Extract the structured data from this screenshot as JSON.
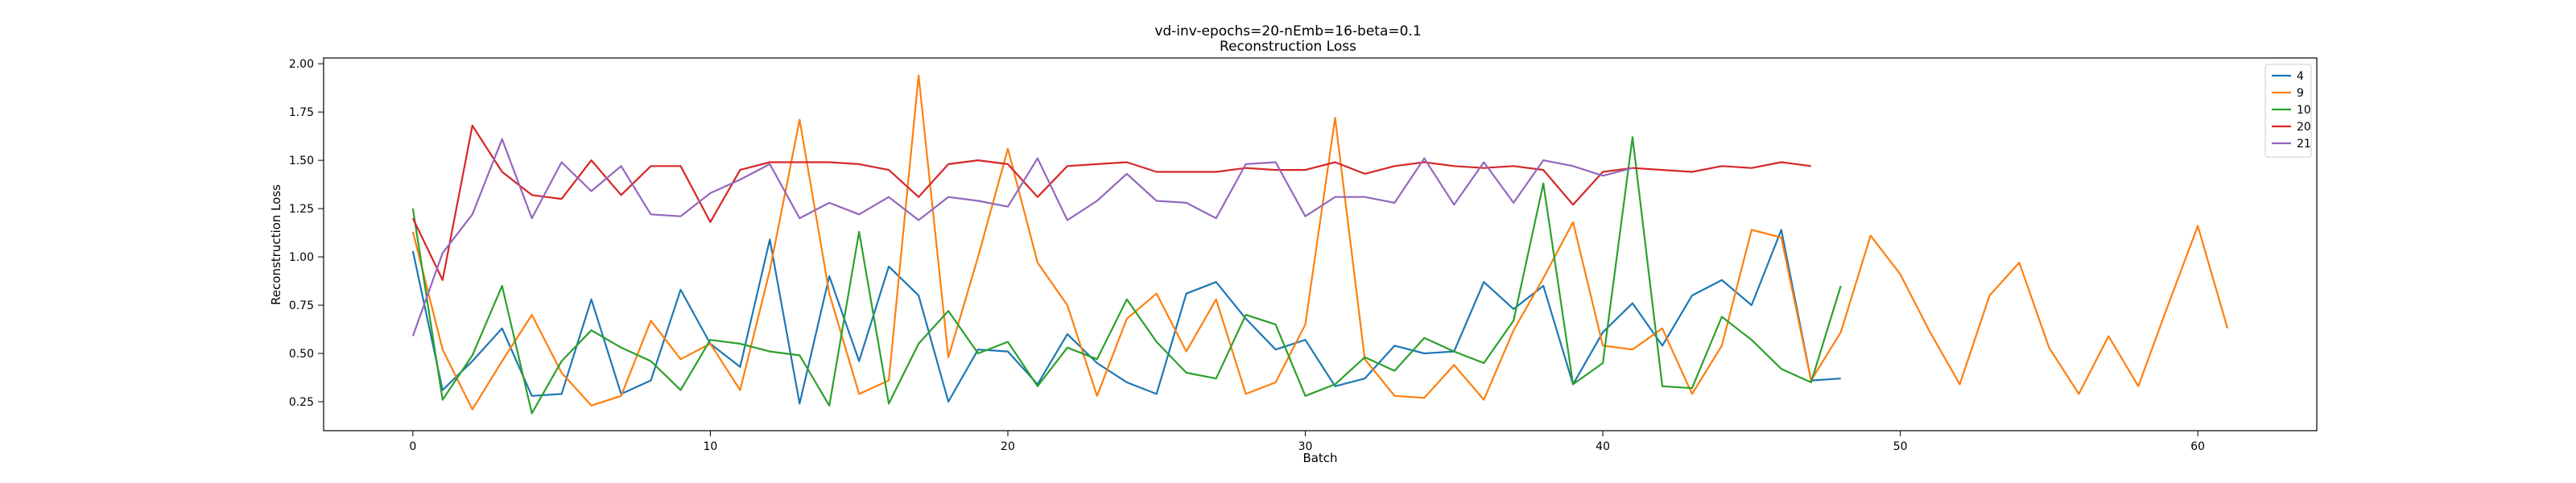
{
  "chart_data": {
    "type": "line",
    "title": "vd-inv-epochs=20-nEmb=16-beta=0.1",
    "subtitle": "Reconstruction Loss",
    "xlabel": "Batch",
    "ylabel": "Reconstruction Loss",
    "xlim": [
      -3,
      64
    ],
    "ylim": [
      0.1,
      2.03
    ],
    "xticks": [
      0,
      10,
      20,
      30,
      40,
      50,
      60
    ],
    "yticks": [
      0.25,
      0.5,
      0.75,
      1.0,
      1.25,
      1.5,
      1.75,
      2.0
    ],
    "ytick_labels": [
      "0.25",
      "0.50",
      "0.75",
      "1.00",
      "1.25",
      "1.50",
      "1.75",
      "2.00"
    ],
    "legend_position": "top-right",
    "grid": false,
    "series": [
      {
        "name": "4",
        "color": "#1f77b4",
        "values": [
          1.03,
          0.31,
          0.46,
          0.63,
          0.28,
          0.29,
          0.78,
          0.29,
          0.36,
          0.83,
          0.55,
          0.43,
          1.09,
          0.24,
          0.9,
          0.46,
          0.95,
          0.8,
          0.25,
          0.52,
          0.51,
          0.34,
          0.6,
          0.45,
          0.35,
          0.29,
          0.81,
          0.87,
          0.68,
          0.52,
          0.57,
          0.33,
          0.37,
          0.54,
          0.5,
          0.51,
          0.87,
          0.73,
          0.85,
          0.34,
          0.61,
          0.76,
          0.54,
          0.8,
          0.88,
          0.75,
          1.14,
          0.36,
          0.37
        ]
      },
      {
        "name": "9",
        "color": "#ff7f0e",
        "values": [
          1.13,
          0.52,
          0.21,
          0.46,
          0.7,
          0.4,
          0.23,
          0.28,
          0.67,
          0.47,
          0.55,
          0.31,
          0.93,
          1.71,
          0.81,
          0.29,
          0.36,
          1.94,
          0.48,
          1.0,
          1.56,
          0.97,
          0.75,
          0.28,
          0.68,
          0.81,
          0.51,
          0.78,
          0.29,
          0.35,
          0.65,
          1.72,
          0.47,
          0.28,
          0.27,
          0.44,
          0.26,
          0.62,
          0.89,
          1.18,
          0.54,
          0.52,
          0.63,
          0.29,
          0.54,
          1.14,
          1.1,
          0.36,
          0.61,
          1.11,
          0.91,
          0.61,
          0.34,
          0.8,
          0.97,
          0.53,
          0.29,
          0.59,
          0.33,
          0.75,
          1.16,
          0.63
        ]
      },
      {
        "name": "10",
        "color": "#2ca02c",
        "values": [
          1.25,
          0.26,
          0.49,
          0.85,
          0.19,
          0.46,
          0.62,
          0.53,
          0.46,
          0.31,
          0.57,
          0.55,
          0.51,
          0.49,
          0.23,
          1.13,
          0.24,
          0.55,
          0.72,
          0.5,
          0.56,
          0.33,
          0.53,
          0.47,
          0.78,
          0.56,
          0.4,
          0.37,
          0.7,
          0.65,
          0.28,
          0.34,
          0.48,
          0.41,
          0.58,
          0.51,
          0.45,
          0.67,
          1.38,
          0.34,
          0.45,
          1.62,
          0.33,
          0.32,
          0.69,
          0.57,
          0.42,
          0.35,
          0.85
        ]
      },
      {
        "name": "20",
        "color": "#d62728",
        "values": [
          1.2,
          0.88,
          1.68,
          1.44,
          1.32,
          1.3,
          1.5,
          1.32,
          1.47,
          1.47,
          1.18,
          1.45,
          1.49,
          1.49,
          1.49,
          1.48,
          1.45,
          1.31,
          1.48,
          1.5,
          1.48,
          1.31,
          1.47,
          1.48,
          1.49,
          1.44,
          1.44,
          1.44,
          1.46,
          1.45,
          1.45,
          1.49,
          1.43,
          1.47,
          1.49,
          1.47,
          1.46,
          1.47,
          1.45,
          1.27,
          1.44,
          1.46,
          1.45,
          1.44,
          1.47,
          1.46,
          1.49,
          1.47
        ]
      },
      {
        "name": "21",
        "color": "#9467bd",
        "values": [
          0.59,
          1.02,
          1.22,
          1.61,
          1.2,
          1.49,
          1.34,
          1.47,
          1.22,
          1.21,
          1.33,
          1.4,
          1.48,
          1.2,
          1.28,
          1.22,
          1.31,
          1.19,
          1.31,
          1.29,
          1.26,
          1.51,
          1.19,
          1.29,
          1.43,
          1.29,
          1.28,
          1.2,
          1.48,
          1.49,
          1.21,
          1.31,
          1.31,
          1.28,
          1.51,
          1.27,
          1.49,
          1.28,
          1.5,
          1.47,
          1.42,
          1.46
        ]
      }
    ]
  }
}
